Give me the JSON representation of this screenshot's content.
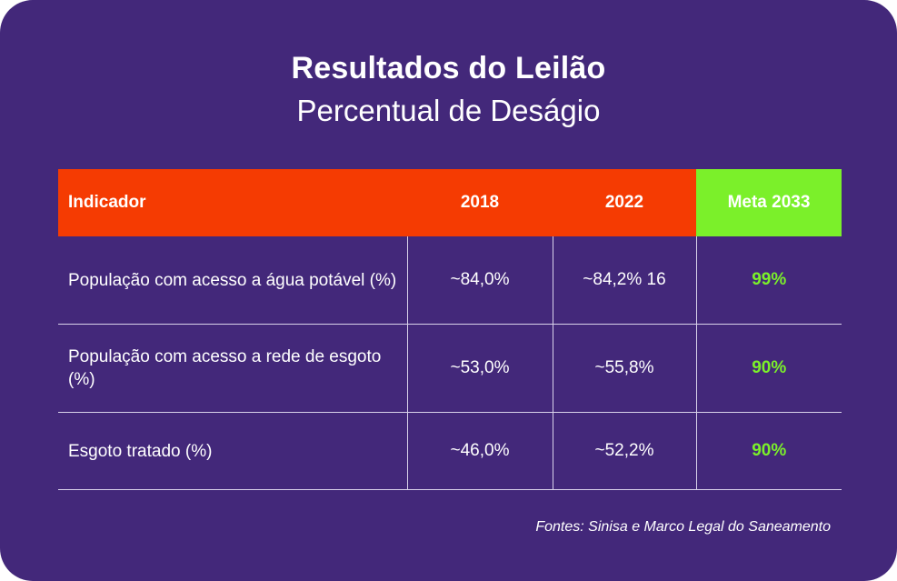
{
  "title": "Resultados do Leilão",
  "subtitle": "Percentual de Deságio",
  "colors": {
    "background": "#43287a",
    "header_orange": "#f53b02",
    "meta_green": "#7bf02a",
    "text": "#ffffff"
  },
  "chart_data": {
    "type": "table",
    "columns": [
      "Indicador",
      "2018",
      "2022",
      "Meta 2033"
    ],
    "rows": [
      [
        "População com acesso a água potável (%)",
        "~84,0%",
        "~84,2% 16",
        "99%"
      ],
      [
        "População com acesso a rede de esgoto (%)",
        "~53,0%",
        "~55,8%",
        "90%"
      ],
      [
        "Esgoto tratado (%)",
        "~46,0%",
        "~52,2%",
        "90%"
      ]
    ]
  },
  "source": "Fontes: Sinisa e Marco Legal do Saneamento"
}
